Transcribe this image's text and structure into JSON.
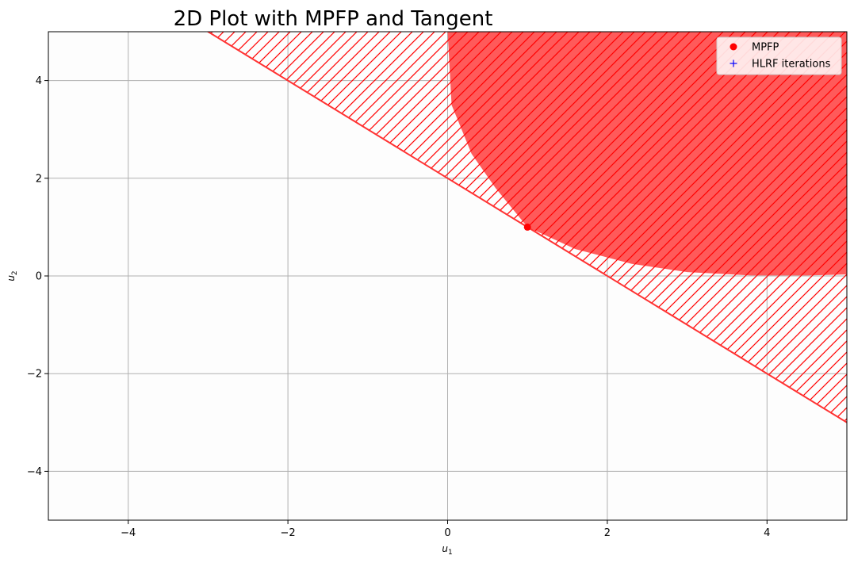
{
  "chart_data": {
    "type": "scatter",
    "title": "2D Plot with MPFP and Tangent",
    "xlabel": "u",
    "xlabel_sub": "1",
    "ylabel": "u",
    "ylabel_sub": "2",
    "xlim": [
      -5,
      5
    ],
    "ylim": [
      -5,
      5
    ],
    "xticks": [
      -4,
      -2,
      0,
      2,
      4
    ],
    "yticks": [
      -4,
      -2,
      0,
      2,
      4
    ],
    "xtick_labels": [
      "−4",
      "−2",
      "0",
      "2",
      "4"
    ],
    "ytick_labels": [
      "−4",
      "−2",
      "0",
      "2",
      "4"
    ],
    "grid": true,
    "legend_position": "top-right",
    "tangent_line": {
      "slope": -1,
      "intercept": 2,
      "color": "#ff3333"
    },
    "failure_region": {
      "boundary": [
        [
          0,
          5
        ],
        [
          0.05,
          3.5
        ],
        [
          0.3,
          2.5
        ],
        [
          0.6,
          1.8
        ],
        [
          1,
          1
        ],
        [
          1.6,
          0.55
        ],
        [
          2.3,
          0.25
        ],
        [
          3,
          0.08
        ],
        [
          3.8,
          0.01
        ],
        [
          4.5,
          0.01
        ],
        [
          5,
          0.03
        ]
      ],
      "fill_color": "#ff5a5a",
      "hatch_color": "#ff0000"
    },
    "series": [
      {
        "name": "MPFP",
        "marker": "circle",
        "color": "#ff0000",
        "points": [
          [
            1,
            1
          ]
        ]
      },
      {
        "name": "HLRF iterations",
        "marker": "plus",
        "color": "#0000ff",
        "points": []
      }
    ]
  }
}
